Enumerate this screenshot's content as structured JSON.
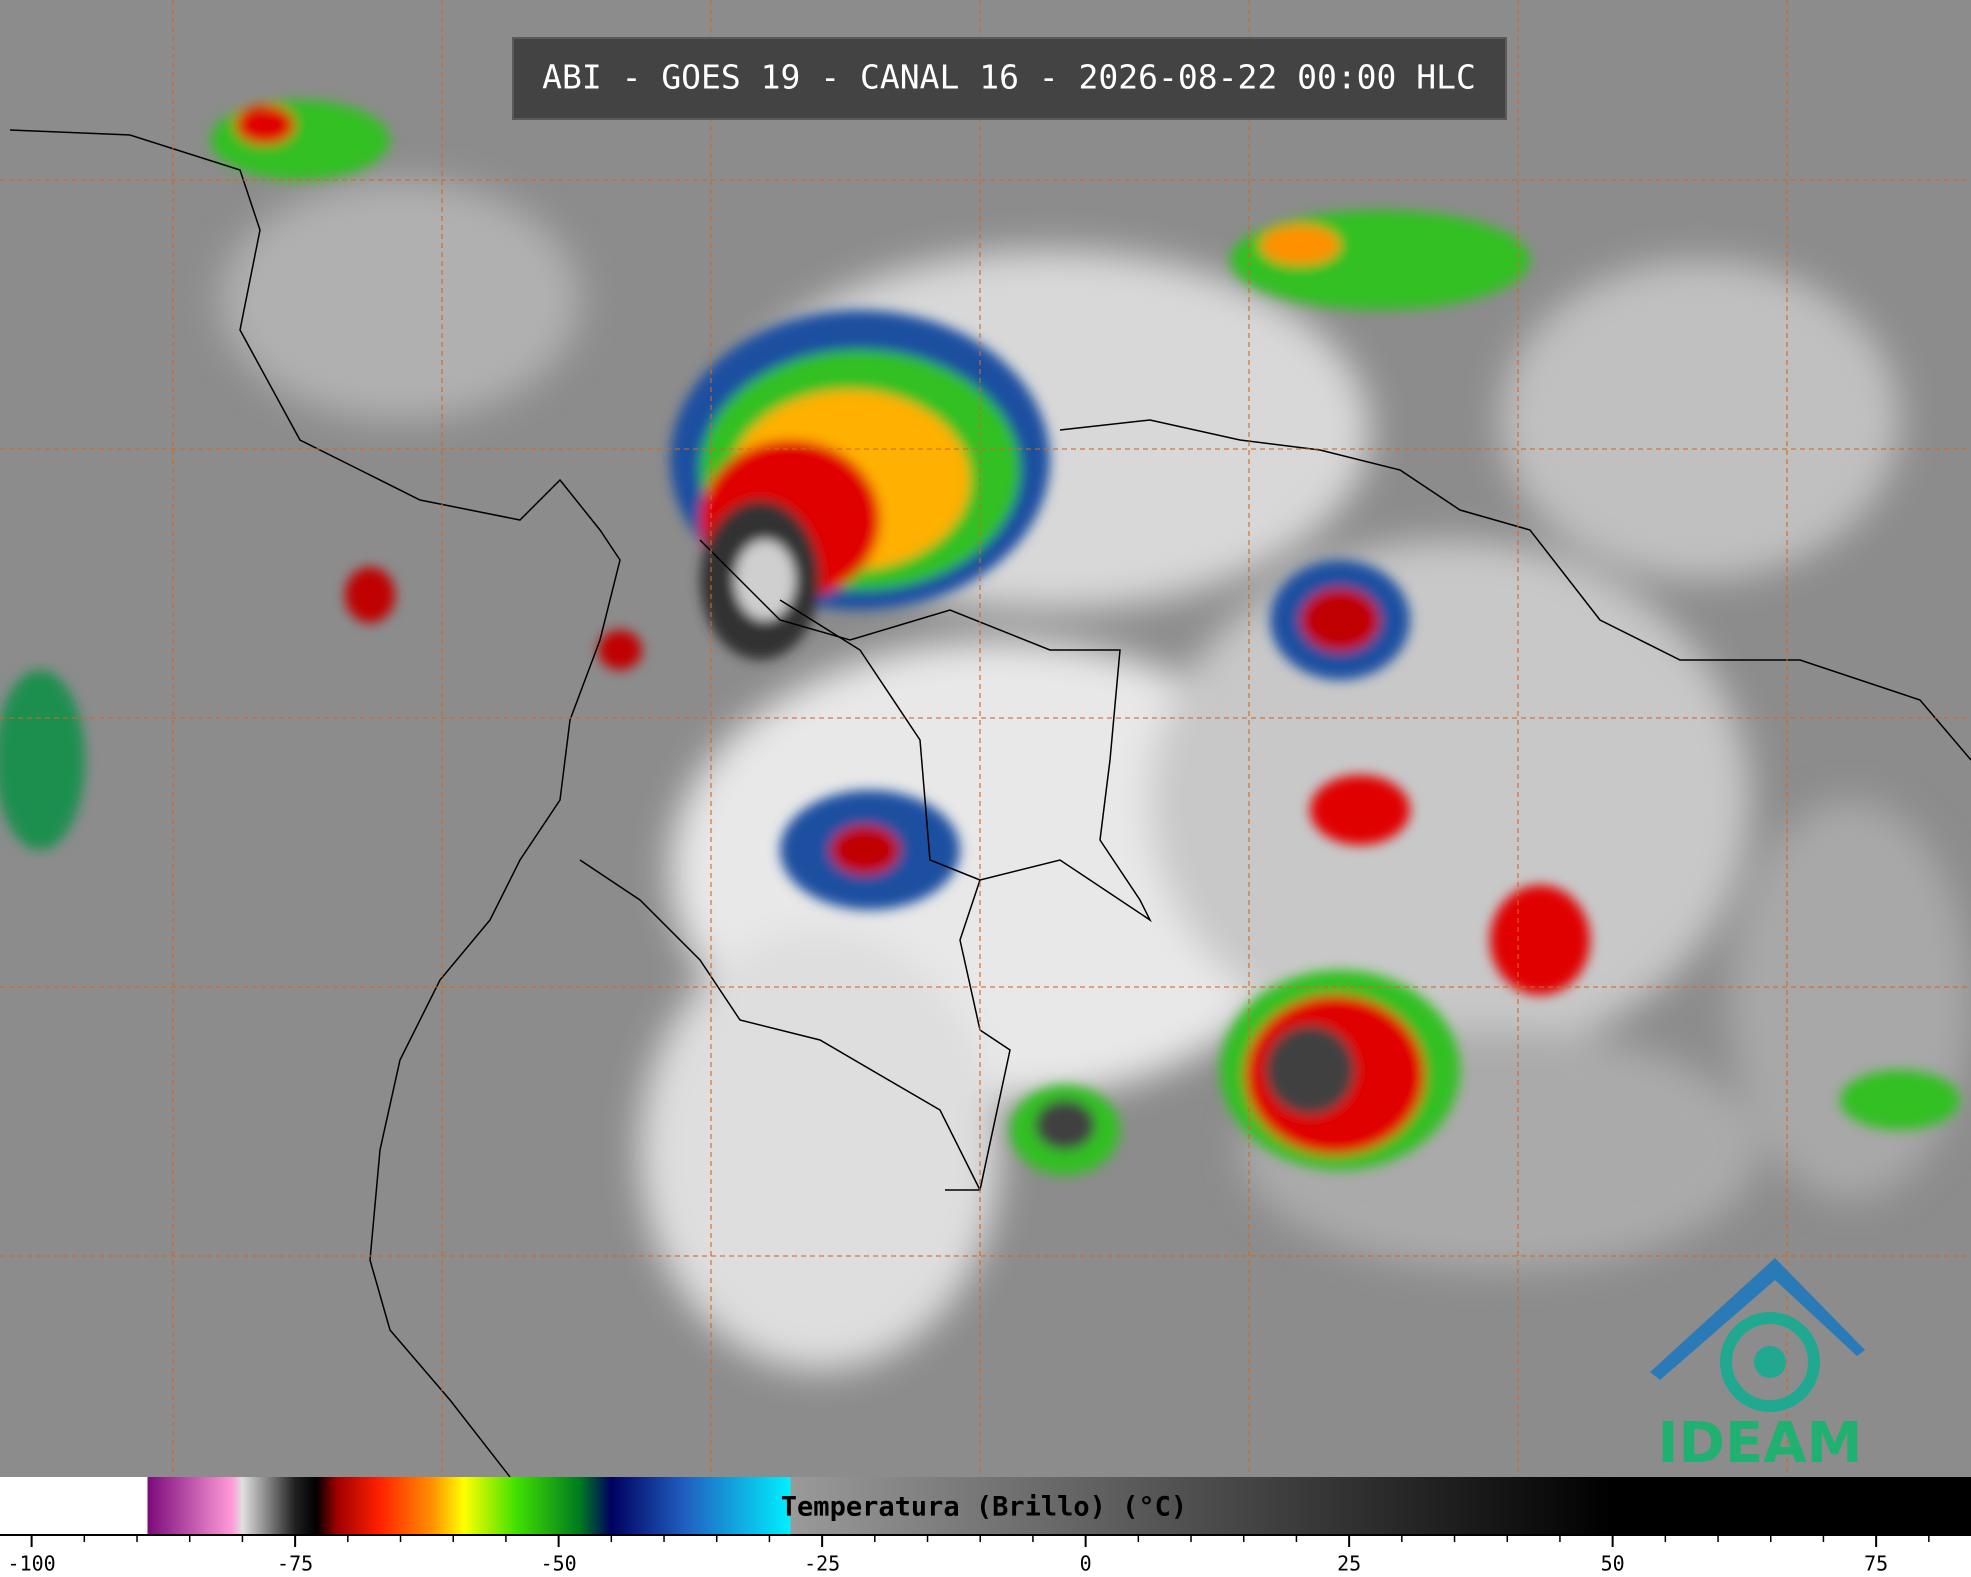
{
  "header": {
    "title": "ABI - GOES 19 - CANAL 16 - 2026-08-22 00:00 HLC"
  },
  "colorbar": {
    "label": "Temperatura (Brillo) (°C)",
    "lim": [
      -103,
      84
    ],
    "ticks": [
      -100,
      -75,
      -50,
      -25,
      0,
      25,
      50,
      75
    ],
    "minor_ticks": [
      -95,
      -90,
      -85,
      -80,
      -70,
      -65,
      -60,
      -55,
      -45,
      -40,
      -35,
      -30,
      -20,
      -15,
      -10,
      -5,
      5,
      10,
      15,
      20,
      30,
      35,
      40,
      45,
      55,
      60,
      65,
      70,
      80
    ],
    "stops": [
      {
        "value": -89,
        "color": "#ffffff"
      },
      {
        "value": -89,
        "color": "#7a0a7a"
      },
      {
        "value": -81,
        "color": "#ff9ad8"
      },
      {
        "value": -80,
        "color": "#e0e0e0"
      },
      {
        "value": -75,
        "color": "#202020"
      },
      {
        "value": -73,
        "color": "#000000"
      },
      {
        "value": -71,
        "color": "#a00000"
      },
      {
        "value": -67,
        "color": "#ff2000"
      },
      {
        "value": -62,
        "color": "#ff9000"
      },
      {
        "value": -59,
        "color": "#ffff00"
      },
      {
        "value": -54,
        "color": "#40e000"
      },
      {
        "value": -48,
        "color": "#007a20"
      },
      {
        "value": -45,
        "color": "#000060"
      },
      {
        "value": -38,
        "color": "#2060c0"
      },
      {
        "value": -28,
        "color": "#00f0ff"
      },
      {
        "value": -28,
        "color": "#9a9a9a"
      },
      {
        "value": 50,
        "color": "#000000"
      },
      {
        "value": 84,
        "color": "#000000"
      }
    ]
  },
  "logo": {
    "text": "IDEAM"
  }
}
